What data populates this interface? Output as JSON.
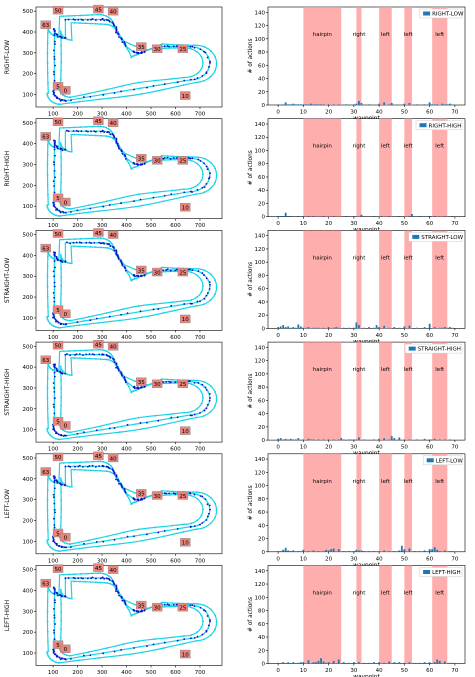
{
  "figure": {
    "track_axes": {
      "xticks": [
        100,
        200,
        300,
        400,
        500,
        600,
        700
      ],
      "yticks": [
        100,
        200,
        300,
        400,
        500
      ],
      "xlim": [
        30,
        790
      ],
      "ylim": [
        40,
        520
      ],
      "waypoint_labels": [
        "50",
        "45",
        "40",
        "35",
        "30",
        "25",
        "63",
        "5",
        "0",
        "10"
      ],
      "colors": {
        "track": "#19d3e6",
        "actions": "#1010c8",
        "label_bg": "#e8847c"
      }
    },
    "bar_axes": {
      "xticks": [
        0,
        10,
        20,
        30,
        40,
        50,
        60,
        70
      ],
      "yticks": [
        0,
        20,
        40,
        60,
        80,
        100,
        120,
        140
      ],
      "xlim": [
        -4,
        74
      ],
      "ylim": [
        0,
        148
      ],
      "xlabel": "waypoint",
      "ylabel": "# of actions",
      "bar_color": "#1f77b4",
      "region_color": "#ff9a9a",
      "regions": [
        {
          "label": "hairpin",
          "start": 10,
          "end": 25
        },
        {
          "label": "right",
          "start": 31,
          "end": 33
        },
        {
          "label": "left",
          "start": 40,
          "end": 45
        },
        {
          "label": "left",
          "start": 50,
          "end": 53
        },
        {
          "label": "left",
          "start": 61,
          "end": 67
        }
      ]
    }
  },
  "chart_data": [
    {
      "type": "scatter",
      "ylabel": "RIGHT-LOW"
    },
    {
      "type": "bar",
      "xlabel": "waypoint",
      "ylabel": "# of actions",
      "legend": "RIGHT-LOW",
      "legend_loc": "upper-right",
      "ylim": [
        0,
        148
      ],
      "x": [
        0,
        2,
        3,
        4,
        5,
        6,
        7,
        8,
        9,
        10,
        11,
        12,
        13,
        14,
        15,
        16,
        17,
        18,
        20,
        22,
        24,
        27,
        30,
        31,
        32,
        33,
        36,
        40,
        42,
        44,
        45,
        50,
        52,
        55,
        58,
        60,
        61,
        62,
        63,
        65,
        66,
        67,
        68
      ],
      "values": [
        1,
        1,
        4,
        1,
        1,
        2,
        1,
        1,
        1,
        1,
        1,
        1,
        2,
        1,
        1,
        1,
        1,
        1,
        1,
        1,
        1,
        1,
        1,
        2,
        6,
        3,
        1,
        2,
        4,
        1,
        3,
        2,
        3,
        1,
        1,
        4,
        1,
        1,
        1,
        2,
        1,
        1,
        2
      ]
    },
    {
      "type": "scatter",
      "ylabel": "RIGHT-HIGH"
    },
    {
      "type": "bar",
      "xlabel": "waypoint",
      "ylabel": "# of actions",
      "legend": "RIGHT-HIGH",
      "legend_loc": "upper-right",
      "ylim": [
        0,
        148
      ],
      "x": [
        0,
        1,
        2,
        3,
        4,
        5,
        8,
        10,
        12,
        14,
        18,
        22,
        27,
        30,
        33,
        38,
        41,
        44,
        48,
        52,
        53,
        56,
        60,
        62,
        66,
        69
      ],
      "values": [
        1,
        1,
        1,
        6,
        1,
        1,
        1,
        1,
        1,
        1,
        1,
        1,
        1,
        1,
        3,
        1,
        1,
        1,
        1,
        1,
        4,
        1,
        1,
        1,
        1,
        1
      ]
    },
    {
      "type": "scatter",
      "ylabel": "STRAIGHT-LOW"
    },
    {
      "type": "bar",
      "xlabel": "waypoint",
      "ylabel": "# of actions",
      "legend": "STRAIGHT-LOW",
      "legend_loc": "upper-right",
      "ylim": [
        0,
        148
      ],
      "x": [
        0,
        1,
        2,
        3,
        4,
        5,
        6,
        7,
        8,
        9,
        10,
        11,
        12,
        14,
        15,
        16,
        18,
        20,
        22,
        23,
        24,
        26,
        28,
        30,
        31,
        32,
        34,
        36,
        38,
        39,
        40,
        42,
        44,
        46,
        48,
        50,
        52,
        55,
        58,
        60,
        62,
        64,
        65,
        66,
        67,
        68,
        69
      ],
      "values": [
        2,
        3,
        5,
        2,
        3,
        1,
        2,
        1,
        6,
        3,
        1,
        1,
        2,
        1,
        1,
        1,
        1,
        2,
        1,
        2,
        1,
        1,
        1,
        1,
        9,
        5,
        1,
        2,
        1,
        5,
        2,
        4,
        1,
        2,
        1,
        3,
        4,
        1,
        2,
        7,
        2,
        1,
        1,
        2,
        1,
        2,
        1
      ]
    },
    {
      "type": "scatter",
      "ylabel": "STRAIGHT-HIGH"
    },
    {
      "type": "bar",
      "xlabel": "waypoint",
      "ylabel": "# of actions",
      "legend": "STRAIGHT-HIGH",
      "legend_loc": "upper-right",
      "ylim": [
        0,
        148
      ],
      "x": [
        0,
        1,
        2,
        3,
        4,
        5,
        6,
        7,
        8,
        10,
        12,
        13,
        14,
        16,
        18,
        20,
        22,
        24,
        25,
        26,
        28,
        29,
        30,
        31,
        32,
        34,
        38,
        40,
        42,
        44,
        45,
        46,
        48,
        50,
        52,
        55,
        58,
        60,
        61,
        62,
        64,
        66,
        68
      ],
      "values": [
        2,
        3,
        1,
        2,
        1,
        2,
        1,
        1,
        3,
        1,
        2,
        1,
        1,
        1,
        1,
        1,
        1,
        1,
        3,
        1,
        1,
        1,
        1,
        1,
        4,
        1,
        1,
        2,
        3,
        1,
        6,
        3,
        4,
        1,
        1,
        1,
        2,
        1,
        1,
        2,
        1,
        1,
        1
      ]
    },
    {
      "type": "scatter",
      "ylabel": "LEFT-LOW"
    },
    {
      "type": "bar",
      "xlabel": "waypoint",
      "ylabel": "# of actions",
      "legend": "LEFT-LOW",
      "legend_loc": "upper-right",
      "ylim": [
        0,
        148
      ],
      "x": [
        0,
        1,
        2,
        3,
        4,
        5,
        6,
        8,
        10,
        12,
        14,
        16,
        18,
        19,
        20,
        21,
        22,
        24,
        26,
        28,
        30,
        31,
        32,
        33,
        34,
        36,
        38,
        40,
        42,
        44,
        46,
        48,
        49,
        50,
        52,
        54,
        56,
        58,
        60,
        61,
        62,
        63,
        64,
        66,
        68,
        69
      ],
      "values": [
        1,
        1,
        3,
        6,
        2,
        1,
        2,
        1,
        3,
        1,
        2,
        1,
        1,
        3,
        2,
        4,
        5,
        4,
        1,
        1,
        1,
        3,
        2,
        2,
        1,
        1,
        1,
        1,
        2,
        1,
        1,
        2,
        9,
        4,
        5,
        1,
        1,
        2,
        4,
        4,
        7,
        3,
        1,
        2,
        1,
        1
      ]
    },
    {
      "type": "scatter",
      "ylabel": "LEFT-HIGH"
    },
    {
      "type": "bar",
      "xlabel": "waypoint",
      "ylabel": "# of actions",
      "legend": "LEFT-HIGH",
      "legend_loc": "upper-right",
      "ylim": [
        0,
        148
      ],
      "x": [
        0,
        2,
        4,
        6,
        8,
        9,
        10,
        12,
        14,
        15,
        16,
        17,
        18,
        19,
        20,
        22,
        24,
        26,
        28,
        30,
        32,
        34,
        36,
        38,
        40,
        42,
        44,
        46,
        48,
        50,
        52,
        54,
        56,
        58,
        60,
        62,
        63,
        64,
        66,
        68,
        69
      ],
      "values": [
        1,
        2,
        2,
        2,
        1,
        2,
        2,
        5,
        2,
        2,
        4,
        8,
        3,
        1,
        2,
        4,
        6,
        2,
        1,
        2,
        2,
        1,
        1,
        2,
        2,
        1,
        3,
        2,
        2,
        1,
        2,
        1,
        1,
        2,
        2,
        2,
        6,
        4,
        3,
        1,
        1
      ]
    }
  ]
}
